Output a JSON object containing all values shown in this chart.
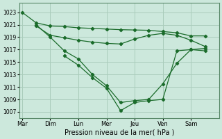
{
  "xlabel": "Pression niveau de la mer( hPa )",
  "background_color": "#cce8dc",
  "grid_color": "#aaccbb",
  "line_color": "#1a6b2a",
  "ylim": [
    1006.0,
    1024.5
  ],
  "yticks": [
    1007,
    1009,
    1011,
    1013,
    1015,
    1017,
    1019,
    1021,
    1023
  ],
  "xlim": [
    -0.1,
    7.0
  ],
  "xtick_positions": [
    0.0,
    1.0,
    2.0,
    3.0,
    4.0,
    5.0,
    6.0
  ],
  "xtick_labels": [
    "Mar",
    "Dim",
    "Lun",
    "Mer",
    "Jeu",
    "Ven",
    "Sam"
  ],
  "line1_x": [
    0.0,
    0.5,
    1.0,
    1.5,
    2.0,
    2.5,
    3.0,
    3.5,
    4.0,
    4.5,
    5.0,
    5.5,
    6.0,
    6.5
  ],
  "line1_y": [
    1023.0,
    1021.3,
    1020.8,
    1020.7,
    1020.5,
    1020.4,
    1020.3,
    1020.2,
    1020.15,
    1020.1,
    1019.9,
    1019.7,
    1019.2,
    1019.2
  ],
  "line2_x": [
    0.5,
    1.0,
    1.5,
    2.0,
    2.5,
    3.0,
    3.5,
    4.0,
    4.5,
    5.0,
    5.5,
    6.0,
    6.5
  ],
  "line2_y": [
    1020.8,
    1019.3,
    1018.9,
    1018.5,
    1018.2,
    1018.0,
    1017.9,
    1018.7,
    1019.3,
    1019.6,
    1019.3,
    1018.5,
    1017.5
  ],
  "line3_x": [
    0.5,
    1.0,
    1.5,
    2.0,
    2.5,
    3.0,
    3.5,
    4.0,
    4.5,
    5.0,
    5.5,
    6.0,
    6.5
  ],
  "line3_y": [
    1021.0,
    1019.0,
    1016.8,
    1015.5,
    1013.0,
    1011.2,
    1008.5,
    1008.8,
    1009.0,
    1011.5,
    1014.8,
    1017.0,
    1016.8
  ],
  "line4_x": [
    1.5,
    2.0,
    2.5,
    3.0,
    3.5,
    4.0,
    4.5,
    5.0,
    5.5,
    6.0,
    6.5
  ],
  "line4_y": [
    1016.0,
    1014.5,
    1012.5,
    1010.8,
    1007.2,
    1008.5,
    1008.8,
    1009.0,
    1016.8,
    1017.0,
    1017.2
  ]
}
